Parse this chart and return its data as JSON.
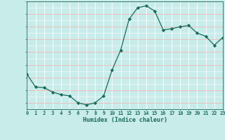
{
  "x": [
    0,
    1,
    2,
    3,
    4,
    5,
    6,
    7,
    8,
    9,
    10,
    11,
    12,
    13,
    14,
    15,
    16,
    17,
    18,
    19,
    20,
    21,
    22,
    23
  ],
  "y": [
    6.5,
    4.5,
    4.4,
    3.7,
    3.3,
    3.1,
    2.0,
    1.7,
    2.0,
    3.1,
    7.2,
    10.3,
    15.2,
    17.0,
    17.3,
    16.5,
    13.5,
    13.7,
    14.0,
    14.2,
    13.0,
    12.5,
    11.1,
    12.3
  ],
  "xlabel": "Humidex (Indice chaleur)",
  "xlim": [
    0,
    23
  ],
  "ylim": [
    1,
    18
  ],
  "yticks": [
    1,
    3,
    5,
    7,
    9,
    11,
    13,
    15,
    17
  ],
  "xtick_labels": [
    "0",
    "1",
    "2",
    "3",
    "4",
    "5",
    "6",
    "7",
    "8",
    "9",
    "10",
    "11",
    "12",
    "13",
    "14",
    "15",
    "16",
    "17",
    "18",
    "19",
    "20",
    "21",
    "22",
    "23"
  ],
  "line_color": "#1a6b5a",
  "marker_color": "#1a6b5a",
  "bg_color": "#c8ecea",
  "grid_major_color": "#f0b8b8",
  "grid_minor_color": "#ffffff",
  "label_color": "#1a6b5a"
}
